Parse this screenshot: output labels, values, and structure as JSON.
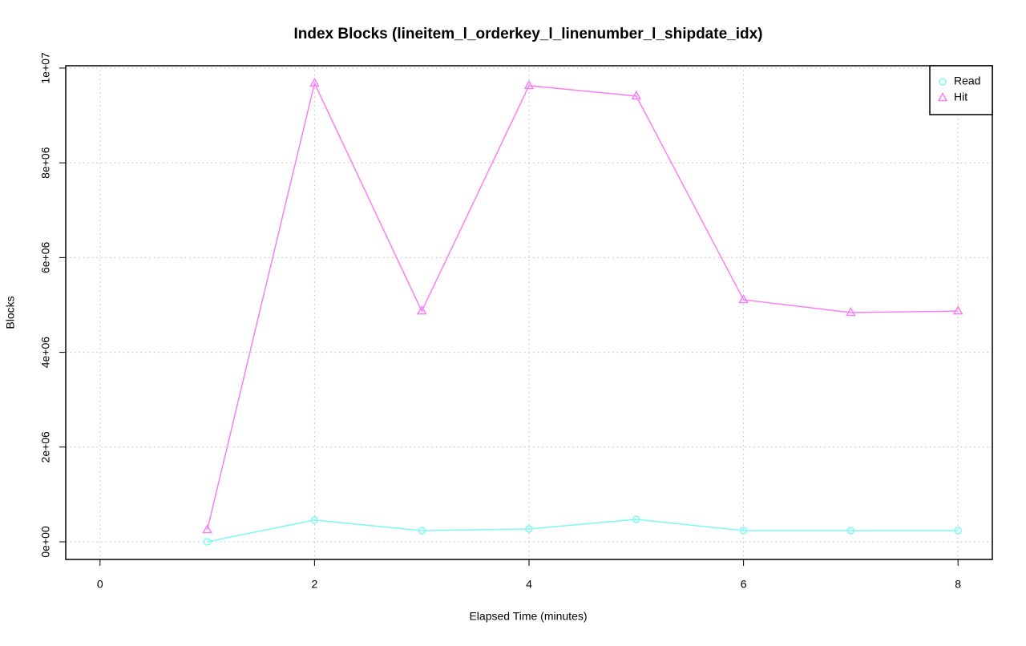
{
  "chart_data": {
    "type": "line",
    "title": "Index Blocks (lineitem_l_orderkey_l_linenumber_l_shipdate_idx)",
    "x_label": "Elapsed Time (minutes)",
    "y_label": "Blocks",
    "x": [
      1,
      2,
      3,
      4,
      5,
      6,
      7,
      8
    ],
    "series": [
      {
        "name": "Read",
        "color": "#7ff7f7",
        "marker": "circle",
        "values": [
          0,
          460000,
          237000,
          270000,
          474000,
          237000,
          237000,
          237000
        ]
      },
      {
        "name": "Hit",
        "color": "#f77ff7",
        "marker": "triangle",
        "values": [
          254000,
          9680000,
          4870000,
          9630000,
          9410000,
          5110000,
          4840000,
          4870000
        ]
      }
    ],
    "xlim": [
      -0.32,
      8.32
    ],
    "xticks": [
      0,
      2,
      4,
      6,
      8
    ],
    "ylim": [
      -372000,
      10050000
    ],
    "yticks": [
      {
        "value": 0,
        "label": "0e+00"
      },
      {
        "value": 2000000,
        "label": "2e+06"
      },
      {
        "value": 4000000,
        "label": "4e+06"
      },
      {
        "value": 6000000,
        "label": "6e+06"
      },
      {
        "value": 8000000,
        "label": "8e+06"
      },
      {
        "value": 10000000,
        "label": "1e+07"
      }
    ],
    "grid": true,
    "legend": "top-right"
  }
}
